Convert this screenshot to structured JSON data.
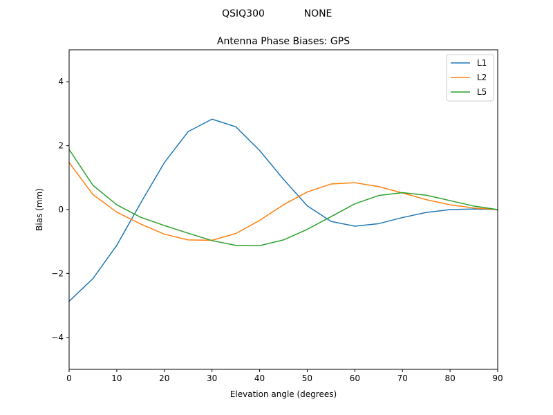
{
  "suptitle_left": "QSIQ300",
  "suptitle_right": "NONE",
  "chart_data": {
    "type": "line",
    "title": "Antenna Phase Biases: GPS",
    "xlabel": "Elevation angle (degrees)",
    "ylabel": "Bias (mm)",
    "xlim": [
      0,
      90
    ],
    "ylim": [
      -5,
      5
    ],
    "xticks": [
      0,
      10,
      20,
      30,
      40,
      50,
      60,
      70,
      80,
      90
    ],
    "yticks": [
      -4,
      -2,
      0,
      2,
      4
    ],
    "xtick_labels": [
      "0",
      "10",
      "20",
      "30",
      "40",
      "50",
      "60",
      "70",
      "80",
      "90"
    ],
    "ytick_labels": [
      "−4",
      "−2",
      "0",
      "2",
      "4"
    ],
    "grid": false,
    "legend_position": "top-right",
    "x": [
      0,
      5,
      10,
      15,
      20,
      25,
      30,
      35,
      40,
      45,
      50,
      55,
      60,
      65,
      70,
      75,
      80,
      85,
      90
    ],
    "series": [
      {
        "name": "L1",
        "color": "#1f77b4",
        "values": [
          -2.87,
          -2.16,
          -1.12,
          0.2,
          1.47,
          2.44,
          2.83,
          2.59,
          1.85,
          0.95,
          0.12,
          -0.37,
          -0.52,
          -0.44,
          -0.25,
          -0.09,
          0.0,
          0.02,
          0.0
        ]
      },
      {
        "name": "L2",
        "color": "#ff7f0e",
        "values": [
          1.47,
          0.47,
          -0.08,
          -0.45,
          -0.77,
          -0.95,
          -0.96,
          -0.75,
          -0.34,
          0.15,
          0.55,
          0.8,
          0.84,
          0.72,
          0.52,
          0.31,
          0.15,
          0.05,
          0.0
        ]
      },
      {
        "name": "L5",
        "color": "#2ca02c",
        "values": [
          1.88,
          0.76,
          0.15,
          -0.24,
          -0.5,
          -0.74,
          -0.97,
          -1.12,
          -1.13,
          -0.95,
          -0.62,
          -0.22,
          0.18,
          0.44,
          0.53,
          0.45,
          0.28,
          0.11,
          0.0
        ]
      }
    ]
  }
}
